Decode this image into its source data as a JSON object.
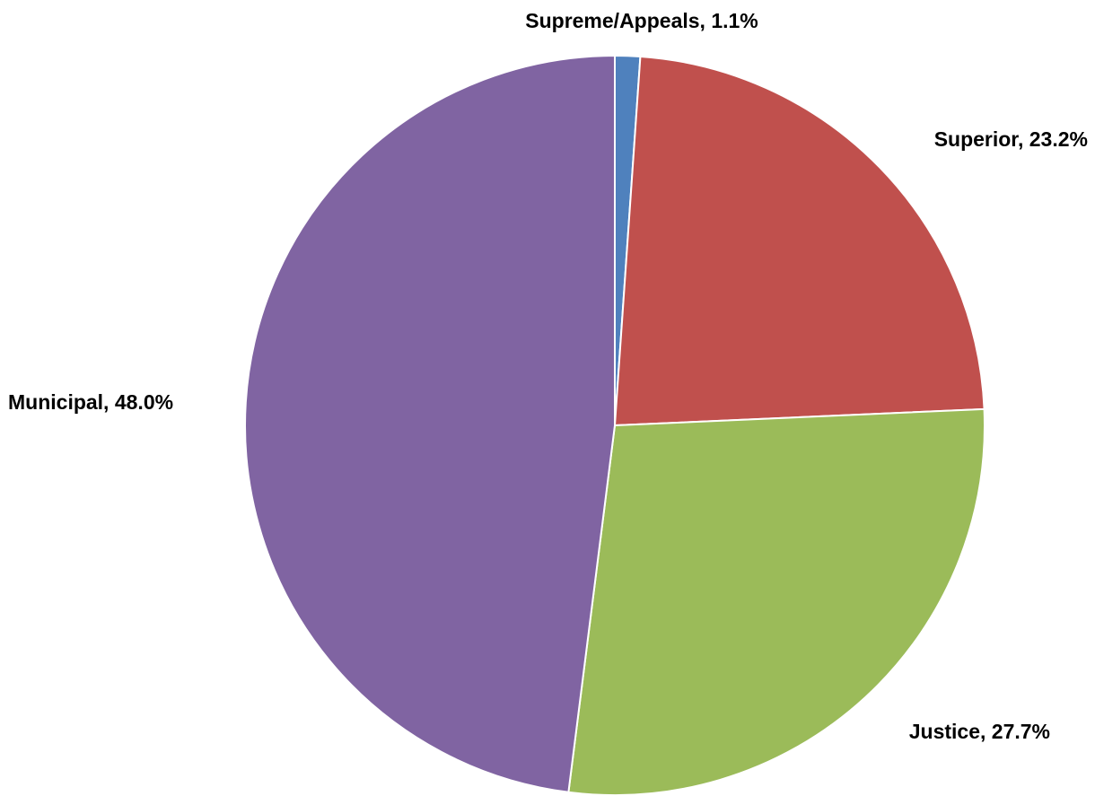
{
  "chart_data": {
    "type": "pie",
    "title": "",
    "start_angle_deg": 0,
    "direction": "clockwise",
    "label_format": "{name}, {value}%",
    "slices": [
      {
        "name": "Supreme/Appeals",
        "value": 1.1,
        "label": "Supreme/Appeals, 1.1%",
        "color": "#4F81BD"
      },
      {
        "name": "Superior",
        "value": 23.2,
        "label": "Superior, 23.2%",
        "color": "#C0504D"
      },
      {
        "name": "Justice",
        "value": 27.7,
        "label": "Justice, 27.7%",
        "color": "#9BBB59"
      },
      {
        "name": "Municipal",
        "value": 48.0,
        "label": "Municipal, 48.0%",
        "color": "#8064A2"
      }
    ],
    "legend": "none",
    "slice_border_color": "#FFFFFF"
  }
}
